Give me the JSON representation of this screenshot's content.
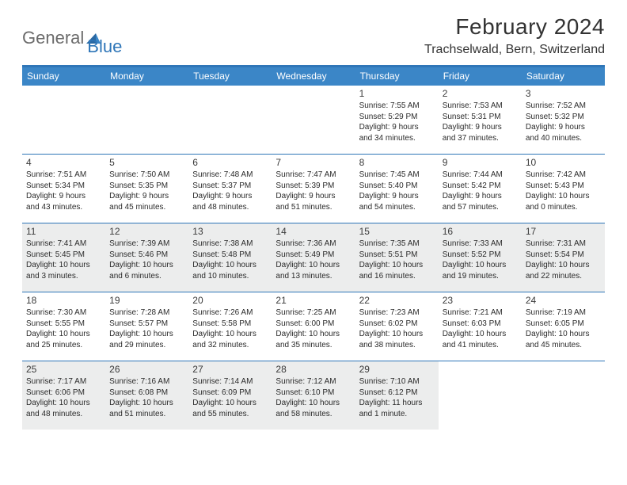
{
  "logo": {
    "text1": "General",
    "text2": "Blue"
  },
  "title": "February 2024",
  "location": "Trachselwald, Bern, Switzerland",
  "colors": {
    "header_bar": "#3b86c7",
    "border": "#2f76b8",
    "shaded_bg": "#eceded",
    "text_dark": "#333333",
    "logo_gray": "#6b6b6b",
    "logo_blue": "#2f76b8"
  },
  "weekdays": [
    "Sunday",
    "Monday",
    "Tuesday",
    "Wednesday",
    "Thursday",
    "Friday",
    "Saturday"
  ],
  "weeks": [
    [
      {
        "n": "",
        "empty": true
      },
      {
        "n": "",
        "empty": true
      },
      {
        "n": "",
        "empty": true
      },
      {
        "n": "",
        "empty": true
      },
      {
        "n": "1",
        "sr": "Sunrise: 7:55 AM",
        "ss": "Sunset: 5:29 PM",
        "d1": "Daylight: 9 hours",
        "d2": "and 34 minutes."
      },
      {
        "n": "2",
        "sr": "Sunrise: 7:53 AM",
        "ss": "Sunset: 5:31 PM",
        "d1": "Daylight: 9 hours",
        "d2": "and 37 minutes."
      },
      {
        "n": "3",
        "sr": "Sunrise: 7:52 AM",
        "ss": "Sunset: 5:32 PM",
        "d1": "Daylight: 9 hours",
        "d2": "and 40 minutes."
      }
    ],
    [
      {
        "n": "4",
        "sr": "Sunrise: 7:51 AM",
        "ss": "Sunset: 5:34 PM",
        "d1": "Daylight: 9 hours",
        "d2": "and 43 minutes."
      },
      {
        "n": "5",
        "sr": "Sunrise: 7:50 AM",
        "ss": "Sunset: 5:35 PM",
        "d1": "Daylight: 9 hours",
        "d2": "and 45 minutes."
      },
      {
        "n": "6",
        "sr": "Sunrise: 7:48 AM",
        "ss": "Sunset: 5:37 PM",
        "d1": "Daylight: 9 hours",
        "d2": "and 48 minutes."
      },
      {
        "n": "7",
        "sr": "Sunrise: 7:47 AM",
        "ss": "Sunset: 5:39 PM",
        "d1": "Daylight: 9 hours",
        "d2": "and 51 minutes."
      },
      {
        "n": "8",
        "sr": "Sunrise: 7:45 AM",
        "ss": "Sunset: 5:40 PM",
        "d1": "Daylight: 9 hours",
        "d2": "and 54 minutes."
      },
      {
        "n": "9",
        "sr": "Sunrise: 7:44 AM",
        "ss": "Sunset: 5:42 PM",
        "d1": "Daylight: 9 hours",
        "d2": "and 57 minutes."
      },
      {
        "n": "10",
        "sr": "Sunrise: 7:42 AM",
        "ss": "Sunset: 5:43 PM",
        "d1": "Daylight: 10 hours",
        "d2": "and 0 minutes."
      }
    ],
    [
      {
        "n": "11",
        "sr": "Sunrise: 7:41 AM",
        "ss": "Sunset: 5:45 PM",
        "d1": "Daylight: 10 hours",
        "d2": "and 3 minutes.",
        "shaded": true
      },
      {
        "n": "12",
        "sr": "Sunrise: 7:39 AM",
        "ss": "Sunset: 5:46 PM",
        "d1": "Daylight: 10 hours",
        "d2": "and 6 minutes.",
        "shaded": true
      },
      {
        "n": "13",
        "sr": "Sunrise: 7:38 AM",
        "ss": "Sunset: 5:48 PM",
        "d1": "Daylight: 10 hours",
        "d2": "and 10 minutes.",
        "shaded": true
      },
      {
        "n": "14",
        "sr": "Sunrise: 7:36 AM",
        "ss": "Sunset: 5:49 PM",
        "d1": "Daylight: 10 hours",
        "d2": "and 13 minutes.",
        "shaded": true
      },
      {
        "n": "15",
        "sr": "Sunrise: 7:35 AM",
        "ss": "Sunset: 5:51 PM",
        "d1": "Daylight: 10 hours",
        "d2": "and 16 minutes.",
        "shaded": true
      },
      {
        "n": "16",
        "sr": "Sunrise: 7:33 AM",
        "ss": "Sunset: 5:52 PM",
        "d1": "Daylight: 10 hours",
        "d2": "and 19 minutes.",
        "shaded": true
      },
      {
        "n": "17",
        "sr": "Sunrise: 7:31 AM",
        "ss": "Sunset: 5:54 PM",
        "d1": "Daylight: 10 hours",
        "d2": "and 22 minutes.",
        "shaded": true
      }
    ],
    [
      {
        "n": "18",
        "sr": "Sunrise: 7:30 AM",
        "ss": "Sunset: 5:55 PM",
        "d1": "Daylight: 10 hours",
        "d2": "and 25 minutes."
      },
      {
        "n": "19",
        "sr": "Sunrise: 7:28 AM",
        "ss": "Sunset: 5:57 PM",
        "d1": "Daylight: 10 hours",
        "d2": "and 29 minutes."
      },
      {
        "n": "20",
        "sr": "Sunrise: 7:26 AM",
        "ss": "Sunset: 5:58 PM",
        "d1": "Daylight: 10 hours",
        "d2": "and 32 minutes."
      },
      {
        "n": "21",
        "sr": "Sunrise: 7:25 AM",
        "ss": "Sunset: 6:00 PM",
        "d1": "Daylight: 10 hours",
        "d2": "and 35 minutes."
      },
      {
        "n": "22",
        "sr": "Sunrise: 7:23 AM",
        "ss": "Sunset: 6:02 PM",
        "d1": "Daylight: 10 hours",
        "d2": "and 38 minutes."
      },
      {
        "n": "23",
        "sr": "Sunrise: 7:21 AM",
        "ss": "Sunset: 6:03 PM",
        "d1": "Daylight: 10 hours",
        "d2": "and 41 minutes."
      },
      {
        "n": "24",
        "sr": "Sunrise: 7:19 AM",
        "ss": "Sunset: 6:05 PM",
        "d1": "Daylight: 10 hours",
        "d2": "and 45 minutes."
      }
    ],
    [
      {
        "n": "25",
        "sr": "Sunrise: 7:17 AM",
        "ss": "Sunset: 6:06 PM",
        "d1": "Daylight: 10 hours",
        "d2": "and 48 minutes.",
        "shaded": true
      },
      {
        "n": "26",
        "sr": "Sunrise: 7:16 AM",
        "ss": "Sunset: 6:08 PM",
        "d1": "Daylight: 10 hours",
        "d2": "and 51 minutes.",
        "shaded": true
      },
      {
        "n": "27",
        "sr": "Sunrise: 7:14 AM",
        "ss": "Sunset: 6:09 PM",
        "d1": "Daylight: 10 hours",
        "d2": "and 55 minutes.",
        "shaded": true
      },
      {
        "n": "28",
        "sr": "Sunrise: 7:12 AM",
        "ss": "Sunset: 6:10 PM",
        "d1": "Daylight: 10 hours",
        "d2": "and 58 minutes.",
        "shaded": true
      },
      {
        "n": "29",
        "sr": "Sunrise: 7:10 AM",
        "ss": "Sunset: 6:12 PM",
        "d1": "Daylight: 11 hours",
        "d2": "and 1 minute.",
        "shaded": true
      },
      {
        "n": "",
        "empty": true
      },
      {
        "n": "",
        "empty": true
      }
    ]
  ]
}
